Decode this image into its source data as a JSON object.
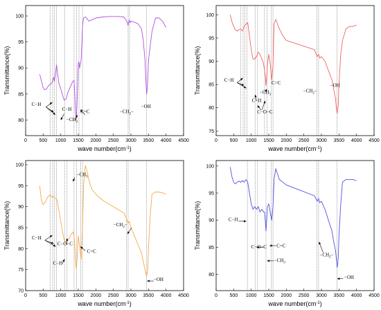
{
  "chart_data": [
    {
      "type": "line",
      "panel": "top-left",
      "color": "#b04fe0",
      "xlabel": "wave number(cm",
      "xlabel_sup": "-1",
      "xlabel_end": ")",
      "ylabel": "Transmittance(%)",
      "xlim": [
        0,
        4500
      ],
      "ylim": [
        77,
        102
      ],
      "xticks": [
        0,
        500,
        1000,
        1500,
        2000,
        2500,
        3000,
        3500,
        4000,
        4500
      ],
      "yticks": [
        80,
        85,
        90,
        95,
        100
      ],
      "vlines": [
        700,
        770,
        820,
        880,
        1110,
        1380,
        1450,
        1520,
        1620,
        2920,
        2960,
        3440
      ],
      "series": [
        {
          "x": [
            400,
            450,
            500,
            550,
            600,
            650,
            700,
            750,
            800,
            820,
            850,
            880,
            900,
            950,
            1000,
            1050,
            1100,
            1150,
            1200,
            1250,
            1300,
            1350,
            1380,
            1400,
            1420,
            1440,
            1460,
            1500,
            1520,
            1540,
            1580,
            1620,
            1650,
            1700,
            1750,
            1800,
            1900,
            2000,
            2200,
            2400,
            2600,
            2800,
            2880,
            2920,
            2950,
            2980,
            3000,
            3100,
            3200,
            3300,
            3350,
            3400,
            3430,
            3450,
            3480,
            3500,
            3600,
            3700,
            3800,
            3900,
            4000
          ],
          "y": [
            88.8,
            87.5,
            86.2,
            85.8,
            86.0,
            86.6,
            86.8,
            87.2,
            88.2,
            87.4,
            89.0,
            90.6,
            89.5,
            87.0,
            86.0,
            84.8,
            83.8,
            84.0,
            85.2,
            86.0,
            86.8,
            87.5,
            87.6,
            85.0,
            82.0,
            80.4,
            82.5,
            90.8,
            91.2,
            90.0,
            91.5,
            98.0,
            99.6,
            99.8,
            99.5,
            99.0,
            99.3,
            99.6,
            99.8,
            99.9,
            99.9,
            99.8,
            99.0,
            98.2,
            99.2,
            98.7,
            99.0,
            98.8,
            98.5,
            97.5,
            95.5,
            91.5,
            87.0,
            85.0,
            87.5,
            91.5,
            97.0,
            99.6,
            99.6,
            99.0,
            97.8
          ]
        }
      ],
      "annotations": [
        {
          "text": "C−H",
          "x": 170,
          "y": 82.7
        },
        {
          "text": "C−H",
          "x": 1040,
          "y": 81.8
        },
        {
          "text": "−CH",
          "sub": "3",
          "x": 1160,
          "y": 79.8
        },
        {
          "text": "C=C",
          "x": 1560,
          "y": 81.3
        },
        {
          "text": "−CH",
          "sub": "2",
          "sup": "−",
          "x": 2680,
          "y": 81.3
        },
        {
          "text": "−OH",
          "x": 3290,
          "y": 82.3
        }
      ],
      "arrows": [
        [
          580,
          82.5,
          760,
          83.4
        ],
        [
          580,
          82.5,
          800,
          81.5
        ],
        [
          580,
          82.5,
          850,
          81.0
        ],
        [
          1100,
          81.2,
          1000,
          80.0
        ],
        [
          1420,
          80.0,
          1470,
          81.0
        ],
        [
          1700,
          81.0,
          1560,
          82.0
        ]
      ]
    },
    {
      "type": "line",
      "panel": "top-right",
      "color": "#f06262",
      "xlabel": "wave number(cm",
      "xlabel_sup": "-1",
      "xlabel_end": ")",
      "ylabel": "Transmittance(%)",
      "xlim": [
        0,
        4500
      ],
      "ylim": [
        74,
        102
      ],
      "xticks": [
        0,
        500,
        1000,
        1500,
        2000,
        2500,
        3000,
        3500,
        4000,
        4500
      ],
      "yticks": [
        75,
        80,
        85,
        90,
        95,
        100
      ],
      "vlines": [
        700,
        770,
        820,
        880,
        1110,
        1180,
        1380,
        1450,
        1570,
        1620,
        2870,
        2920,
        3440
      ],
      "series": [
        {
          "x": [
            400,
            450,
            500,
            550,
            600,
            650,
            700,
            750,
            800,
            850,
            900,
            950,
            1000,
            1050,
            1100,
            1150,
            1200,
            1250,
            1300,
            1350,
            1400,
            1420,
            1440,
            1460,
            1500,
            1550,
            1580,
            1620,
            1650,
            1700,
            1750,
            1800,
            1900,
            2000,
            2200,
            2400,
            2600,
            2800,
            2880,
            2920,
            2950,
            3000,
            3100,
            3200,
            3300,
            3350,
            3400,
            3430,
            3450,
            3480,
            3500,
            3550,
            3600,
            3700,
            3800,
            3900,
            4000
          ],
          "y": [
            100.0,
            98.5,
            97.5,
            96.8,
            96.5,
            96.8,
            97.0,
            96.5,
            97.5,
            98.0,
            98.3,
            95.5,
            92.5,
            90.5,
            90.5,
            91.0,
            92.0,
            91.5,
            90.5,
            89.5,
            87.0,
            84.8,
            86.5,
            89.5,
            91.5,
            89.0,
            86.0,
            89.0,
            98.0,
            99.0,
            98.0,
            97.0,
            95.5,
            94.5,
            94.0,
            93.5,
            93.0,
            92.5,
            91.0,
            91.5,
            90.7,
            91.0,
            90.0,
            88.0,
            86.0,
            84.0,
            82.0,
            79.5,
            78.8,
            80.5,
            85.0,
            91.5,
            94.5,
            97.0,
            97.5,
            97.5,
            97.8
          ]
        }
      ],
      "annotations": [
        {
          "text": "C−H",
          "x": 230,
          "y": 85.6
        },
        {
          "text": "C=C",
          "x": 1580,
          "y": 85.0
        },
        {
          "text": "−CH",
          "sub": "3",
          "x": 1240,
          "y": 83.0
        },
        {
          "text": "C−H",
          "x": 1020,
          "y": 81.2
        },
        {
          "text": "C−O−C",
          "x": 1170,
          "y": 78.8
        },
        {
          "text": "−CH",
          "sub": "2",
          "sup": "−",
          "x": 2480,
          "y": 83.3
        },
        {
          "text": "−OH",
          "x": 3250,
          "y": 84.5
        }
      ],
      "arrows": [
        [
          600,
          85.4,
          760,
          86.4
        ],
        [
          600,
          85.4,
          800,
          84.8
        ],
        [
          600,
          85.4,
          860,
          84.2
        ],
        [
          1380,
          83.3,
          1450,
          84.0
        ],
        [
          1150,
          81.5,
          1110,
          82.8
        ],
        [
          1280,
          79.5,
          1180,
          80.5
        ],
        [
          1300,
          79.5,
          1400,
          81.5
        ]
      ]
    },
    {
      "type": "line",
      "panel": "bottom-left",
      "color": "#f5a848",
      "xlabel": "wave number(cm",
      "xlabel_sup": "-1",
      "xlabel_end": ")",
      "ylabel": "Transmittance(%)",
      "xlim": [
        0,
        4500
      ],
      "ylim": [
        70,
        101
      ],
      "xticks": [
        0,
        500,
        1000,
        1500,
        2000,
        2500,
        3000,
        3500,
        4000,
        4500
      ],
      "yticks": [
        70,
        75,
        80,
        85,
        90,
        95,
        100
      ],
      "vlines": [
        700,
        770,
        820,
        880,
        1110,
        1180,
        1380,
        1450,
        1570,
        1620,
        2870,
        2920,
        3440
      ],
      "series": [
        {
          "x": [
            400,
            450,
            500,
            550,
            600,
            650,
            700,
            750,
            800,
            850,
            900,
            950,
            1000,
            1050,
            1100,
            1150,
            1200,
            1250,
            1300,
            1350,
            1380,
            1400,
            1420,
            1440,
            1460,
            1500,
            1540,
            1580,
            1620,
            1650,
            1700,
            1750,
            1800,
            1850,
            1900,
            2000,
            2100,
            2200,
            2400,
            2600,
            2800,
            2880,
            2920,
            2950,
            3000,
            3100,
            3200,
            3300,
            3350,
            3400,
            3430,
            3450,
            3480,
            3500,
            3550,
            3600,
            3700,
            3800,
            3900,
            4000
          ],
          "y": [
            95.0,
            91.5,
            90.5,
            91.0,
            91.8,
            92.5,
            92.8,
            92.2,
            92.5,
            92.0,
            91.5,
            89.0,
            86.5,
            84.0,
            82.0,
            81.5,
            82.0,
            82.5,
            83.5,
            84.0,
            83.0,
            81.0,
            77.0,
            75.3,
            77.0,
            83.0,
            80.5,
            77.5,
            85.0,
            95.0,
            99.8,
            98.5,
            96.5,
            95.0,
            94.0,
            93.0,
            92.2,
            91.5,
            90.5,
            89.5,
            88.5,
            87.0,
            86.0,
            86.5,
            85.0,
            83.0,
            81.0,
            79.0,
            77.0,
            75.0,
            73.8,
            73.5,
            75.0,
            80.0,
            88.0,
            93.0,
            93.5,
            93.5,
            93.3,
            93.0
          ]
        }
      ],
      "annotations": [
        {
          "text": "C−H",
          "x": 180,
          "y": 82.2
        },
        {
          "text": "C−O−C",
          "x": 900,
          "y": 80.8
        },
        {
          "text": "C−H",
          "x": 780,
          "y": 76.2
        },
        {
          "text": "C=C",
          "x": 1750,
          "y": 79.0
        },
        {
          "text": "−CH",
          "sub": "3",
          "x": 1450,
          "y": 97.3
        },
        {
          "text": "−CH",
          "sub": "2",
          "sup": "−",
          "x": 2500,
          "y": 85.3
        },
        {
          "text": "−OH",
          "x": 3650,
          "y": 72.3
        }
      ],
      "arrows": [
        [
          550,
          82.0,
          760,
          83.2
        ],
        [
          550,
          82.0,
          800,
          81.2
        ],
        [
          550,
          82.0,
          860,
          80.5
        ],
        [
          1180,
          81.0,
          1180,
          82.5
        ],
        [
          1050,
          76.5,
          1110,
          77.5
        ],
        [
          1700,
          79.5,
          1560,
          80.5
        ],
        [
          1400,
          97.0,
          1350,
          96.0
        ],
        [
          3020,
          85.0,
          2900,
          83.5
        ],
        [
          3650,
          72.3,
          3460,
          72.3
        ]
      ]
    },
    {
      "type": "line",
      "panel": "bottom-right",
      "color": "#5050e0",
      "xlabel": "wave number(cm",
      "xlabel_sup": "-1",
      "xlabel_end": ")",
      "ylabel": "Transmittance(%)",
      "xlim": [
        0,
        4500
      ],
      "ylim": [
        77,
        101
      ],
      "xticks": [
        0,
        500,
        1000,
        1500,
        2000,
        2500,
        3000,
        3500,
        4000,
        4500
      ],
      "yticks": [
        80,
        85,
        90,
        95,
        100
      ],
      "vlines": [
        890,
        1110,
        1180,
        1420,
        1570,
        1620,
        2870,
        2920,
        3440
      ],
      "series": [
        {
          "x": [
            400,
            450,
            500,
            550,
            600,
            650,
            700,
            750,
            800,
            850,
            900,
            950,
            1000,
            1050,
            1100,
            1150,
            1200,
            1250,
            1300,
            1350,
            1380,
            1400,
            1420,
            1440,
            1460,
            1500,
            1540,
            1580,
            1620,
            1650,
            1700,
            1750,
            1800,
            1900,
            2000,
            2200,
            2400,
            2600,
            2800,
            2880,
            2920,
            2950,
            3000,
            3100,
            3200,
            3300,
            3350,
            3400,
            3430,
            3450,
            3480,
            3500,
            3550,
            3600,
            3700,
            3800,
            3900,
            4000
          ],
          "y": [
            99.8,
            98.0,
            97.0,
            96.7,
            97.0,
            97.2,
            97.0,
            97.3,
            97.0,
            97.5,
            97.0,
            95.0,
            93.0,
            92.0,
            92.5,
            92.0,
            92.5,
            91.5,
            92.0,
            91.5,
            91.5,
            90.0,
            88.0,
            90.0,
            92.5,
            93.0,
            91.5,
            90.0,
            92.5,
            97.5,
            99.5,
            98.5,
            97.5,
            97.0,
            96.5,
            96.0,
            95.5,
            95.0,
            94.5,
            93.5,
            94.0,
            93.2,
            93.5,
            92.0,
            90.0,
            88.0,
            86.0,
            84.5,
            82.5,
            81.3,
            83.0,
            87.0,
            93.0,
            97.0,
            97.5,
            97.5,
            97.5,
            97.3
          ]
        }
      ],
      "annotations": [
        {
          "text": "C−H",
          "x": 350,
          "y": 89.8
        },
        {
          "text": "C−O−C",
          "x": 1000,
          "y": 84.8
        },
        {
          "text": "C=C",
          "x": 1720,
          "y": 85.0
        },
        {
          "text": "−CH",
          "sub": "3",
          "x": 1650,
          "y": 82.3
        },
        {
          "text": "−CH",
          "sub": "2",
          "sup": "−",
          "x": 2950,
          "y": 83.3
        },
        {
          "text": "−OH",
          "x": 3650,
          "y": 79.2
        }
      ],
      "arrows": [
        [
          640,
          89.8,
          860,
          89.8
        ],
        [
          1350,
          85.0,
          1150,
          85.0
        ],
        [
          1700,
          85.3,
          1520,
          85.3
        ],
        [
          1640,
          82.5,
          1450,
          82.5
        ],
        [
          3050,
          84.0,
          2930,
          86.0
        ],
        [
          3620,
          79.2,
          3450,
          79.2
        ]
      ]
    }
  ]
}
